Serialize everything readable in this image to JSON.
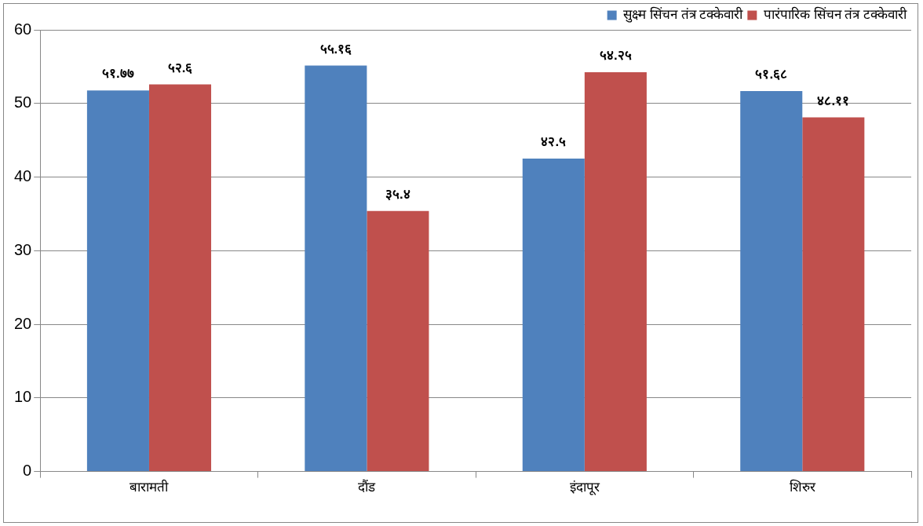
{
  "chart_data": {
    "type": "bar",
    "categories": [
      "बारामती",
      "दौंड",
      "इंदापूर",
      "शिरुर"
    ],
    "series": [
      {
        "name": "सुक्ष्म सिंचन तंत्र टक्केवारी",
        "color": "#4f81bd",
        "values": [
          51.77,
          55.16,
          42.5,
          51.68
        ],
        "value_labels": [
          "५१.७७",
          "५५.१६",
          "४२.५",
          "५१.६८"
        ]
      },
      {
        "name": "पारंपारिक सिंचन तंत्र टक्केवारी",
        "color": "#c0504d",
        "values": [
          52.6,
          35.4,
          54.25,
          48.11
        ],
        "value_labels": [
          "५२.६",
          "३५.४",
          "५४.२५",
          "४८.११"
        ]
      }
    ],
    "ylim": [
      0,
      60
    ],
    "yticks": [
      0,
      10,
      20,
      30,
      40,
      50,
      60
    ],
    "grid": "y",
    "legend": "top right"
  }
}
